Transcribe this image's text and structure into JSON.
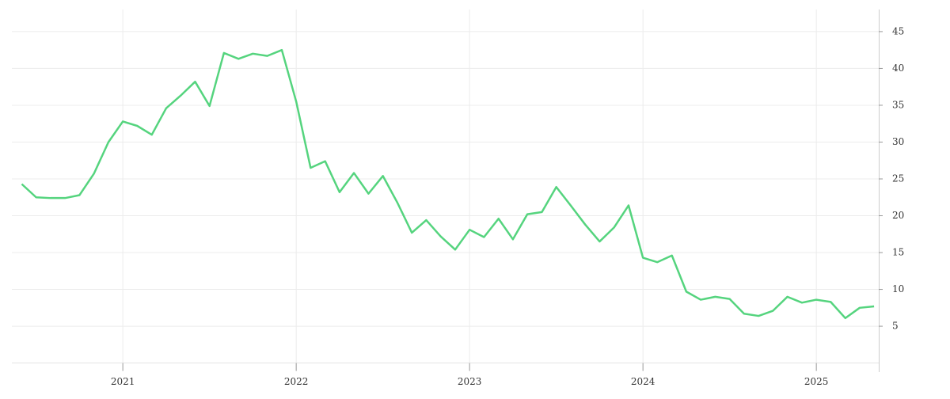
{
  "chart_data": {
    "type": "line",
    "x": [
      2020.417,
      2020.5,
      2020.583,
      2020.667,
      2020.75,
      2020.833,
      2020.917,
      2021,
      2021.083,
      2021.167,
      2021.25,
      2021.333,
      2021.417,
      2021.5,
      2021.583,
      2021.667,
      2021.75,
      2021.833,
      2021.917,
      2022,
      2022.083,
      2022.167,
      2022.25,
      2022.333,
      2022.417,
      2022.5,
      2022.583,
      2022.667,
      2022.75,
      2022.833,
      2022.917,
      2023,
      2023.083,
      2023.167,
      2023.25,
      2023.333,
      2023.417,
      2023.5,
      2023.583,
      2023.667,
      2023.75,
      2023.833,
      2023.917,
      2024,
      2024.083,
      2024.167,
      2024.25,
      2024.333,
      2024.417,
      2024.5,
      2024.583,
      2024.667,
      2024.75,
      2024.833,
      2024.917,
      2025,
      2025.083,
      2025.167,
      2025.25,
      2025.333
    ],
    "values": [
      24.3,
      22.5,
      22.4,
      22.4,
      22.8,
      25.7,
      30.0,
      32.8,
      32.2,
      31.0,
      34.6,
      36.3,
      38.2,
      34.9,
      42.1,
      41.3,
      42.0,
      41.7,
      42.5,
      35.5,
      26.5,
      27.4,
      23.2,
      25.8,
      23.0,
      25.4,
      21.8,
      17.7,
      19.4,
      17.2,
      15.4,
      18.1,
      17.1,
      19.6,
      16.8,
      20.2,
      20.5,
      23.9,
      21.4,
      18.8,
      16.5,
      18.4,
      21.4,
      14.3,
      13.7,
      14.6,
      9.7,
      8.6,
      9.0,
      8.7,
      6.7,
      6.4,
      7.1,
      9.0,
      8.2,
      8.6,
      8.3,
      6.1,
      7.5,
      7.7
    ],
    "color": "#55d47e",
    "xlim": [
      2020.36,
      2025.36
    ],
    "xticks": [
      2021,
      2022,
      2023,
      2024,
      2025
    ],
    "ylim": [
      0,
      48
    ],
    "yticks": [
      5,
      10,
      15,
      20,
      25,
      30,
      35,
      40,
      45
    ],
    "grid": true
  }
}
